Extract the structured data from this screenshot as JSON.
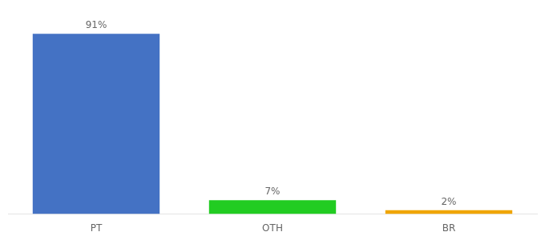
{
  "chart_data": {
    "type": "bar",
    "categories": [
      "PT",
      "OTH",
      "BR"
    ],
    "values": [
      91,
      7,
      2
    ],
    "value_labels": [
      "91%",
      "7%",
      "2%"
    ],
    "colors": [
      "#4472c4",
      "#22cc22",
      "#f0a500"
    ],
    "ylim": [
      0,
      100
    ],
    "grid": false,
    "data_labels": true,
    "tick_labels": "x"
  }
}
